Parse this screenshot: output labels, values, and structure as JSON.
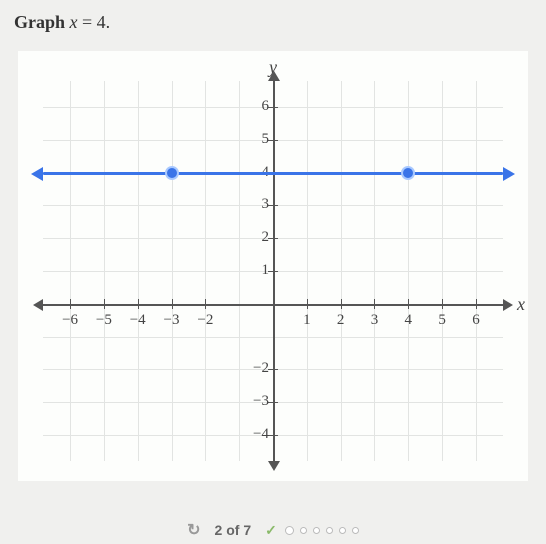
{
  "prompt": {
    "bold": "Graph",
    "equation_lhs": "x",
    "equation_rhs": "4"
  },
  "chart": {
    "type": "line",
    "background_color": "#fdfefc",
    "grid_color": "#e2e4e2",
    "axis_color": "#555555",
    "x_axis_label": "x",
    "y_axis_label": "y",
    "xlim": [
      -6.8,
      6.8
    ],
    "ylim": [
      -4.8,
      6.8
    ],
    "x_ticks": [
      -6,
      -5,
      -4,
      -3,
      -2,
      1,
      2,
      3,
      4,
      5,
      6
    ],
    "y_ticks_pos": [
      1,
      2,
      3,
      4,
      5,
      6
    ],
    "y_ticks_neg": [
      -2,
      -3,
      -4
    ],
    "plotted_line": {
      "y_value": 4,
      "color": "#3a74e8",
      "width": 3,
      "arrows": true,
      "markers": [
        {
          "x": -3,
          "y": 4
        },
        {
          "x": 4,
          "y": 4
        }
      ],
      "marker_fill": "#3a74e8",
      "marker_border": "#a9c9ff",
      "marker_radius": 7
    }
  },
  "progress": {
    "current": 2,
    "total": 7,
    "text": "2 of 7",
    "completed_indicator": "check",
    "remaining_dots": 6
  }
}
